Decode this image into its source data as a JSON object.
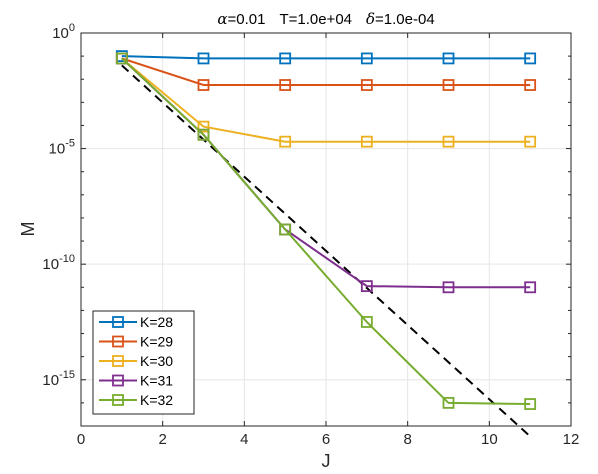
{
  "chart_data": {
    "type": "line",
    "title_parts": {
      "alpha_symbol": "α",
      "alpha_value": "=0.01",
      "T_text": "T=1.0e+04",
      "delta_symbol": "δ",
      "delta_value": "=1.0e-04"
    },
    "xlabel": "J",
    "ylabel": "M",
    "xlim": [
      0,
      12
    ],
    "ylim_exponent": [
      -17,
      0
    ],
    "yscale": "log",
    "grid": true,
    "legend_position": "bottom-left",
    "x_ticks": [
      0,
      2,
      4,
      6,
      8,
      10,
      12
    ],
    "y_ticks": [
      {
        "exp": 0,
        "base": "10",
        "sup": "0"
      },
      {
        "exp": -5,
        "base": "10",
        "sup": "-5"
      },
      {
        "exp": -10,
        "base": "10",
        "sup": "-10"
      },
      {
        "exp": -15,
        "base": "10",
        "sup": "-15"
      }
    ],
    "x": [
      1,
      3,
      5,
      7,
      9,
      11
    ],
    "series": [
      {
        "name": "K=28",
        "color": "#0072BD",
        "log10_values": [
          -1.0,
          -1.1,
          -1.1,
          -1.1,
          -1.1,
          -1.1
        ]
      },
      {
        "name": "K=29",
        "color": "#D95319",
        "log10_values": [
          -1.1,
          -2.25,
          -2.25,
          -2.25,
          -2.25,
          -2.25
        ]
      },
      {
        "name": "K=30",
        "color": "#EDB120",
        "log10_values": [
          -1.1,
          -4.05,
          -4.7,
          -4.7,
          -4.7,
          -4.7
        ]
      },
      {
        "name": "K=31",
        "color": "#7E2F8E",
        "log10_values": [
          -1.1,
          -4.4,
          -8.5,
          -10.95,
          -11.0,
          -11.0
        ]
      },
      {
        "name": "K=32",
        "color": "#77AC30",
        "log10_values": [
          -1.1,
          -4.4,
          -8.5,
          -12.5,
          -16.0,
          -16.05
        ]
      }
    ],
    "reference_line": {
      "style": "dashed",
      "color": "#000000",
      "x": [
        1,
        11
      ],
      "log10_values": [
        -1.4,
        -17.45
      ]
    }
  }
}
